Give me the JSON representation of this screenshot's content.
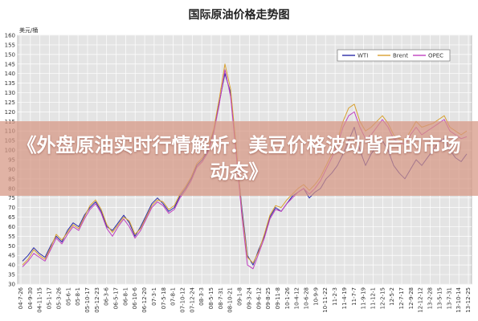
{
  "banner": {
    "title": "《外盘原油实时行情解析：美豆价格波动背后的市场动态》"
  },
  "colors": {
    "wti": "#2a2aa8",
    "brent": "#d8a030",
    "opec": "#c040c0",
    "plot_bg": "#e4e4e4",
    "grid": "#ffffff",
    "banner": "#d69682"
  },
  "chart_data": {
    "type": "line",
    "title": "国际原油价格走势图",
    "ylabel": "美元/桶",
    "ylim": [
      30,
      160
    ],
    "yticks": [
      30,
      35,
      40,
      45,
      50,
      55,
      60,
      65,
      70,
      75,
      80,
      85,
      90,
      95,
      100,
      105,
      110,
      115,
      120,
      125,
      130,
      135,
      140,
      145,
      150,
      155,
      160
    ],
    "grid": true,
    "legend_position": "top-right",
    "xticks": [
      "04-7-26",
      "04-9-30",
      "04-11-15",
      "05-1-17",
      "05-3-26",
      "05-6-1",
      "05-8-1",
      "05-10-17",
      "05-12-23",
      "06-3-6",
      "06-5-17",
      "06-8-1",
      "06-10-6",
      "06-12-20",
      "07-3-1",
      "07-5-18",
      "07-8-1",
      "07-10-12",
      "07-12-24",
      "08-3-3",
      "08-5-15",
      "08-7-31",
      "08-10-21",
      "09-1-8",
      "09-3-24",
      "09-6-12",
      "09-8-25",
      "09-11-8",
      "10-1-26",
      "10-4-12",
      "10-6-28",
      "10-9-9",
      "10-11-22",
      "11-2-3",
      "11-4-19",
      "11-7-7",
      "11-9-19",
      "11-12-1",
      "12-2-15",
      "12-5-2",
      "12-7-17",
      "12-9-28",
      "12-12-12",
      "13-2-28",
      "13-5-15",
      "13-7-31",
      "13-10-14",
      "13-12-25"
    ],
    "series": [
      {
        "name": "WTI",
        "values": [
          42,
          45,
          49,
          46,
          44,
          50,
          55,
          52,
          58,
          62,
          60,
          66,
          70,
          73,
          68,
          60,
          58,
          62,
          66,
          62,
          55,
          60,
          66,
          72,
          75,
          72,
          68,
          70,
          76,
          80,
          85,
          92,
          95,
          100,
          110,
          125,
          140,
          130,
          100,
          70,
          45,
          40,
          48,
          55,
          65,
          70,
          68,
          72,
          76,
          78,
          80,
          75,
          78,
          80,
          85,
          88,
          92,
          98,
          105,
          112,
          100,
          92,
          98,
          102,
          105,
          100,
          92,
          88,
          85,
          90,
          95,
          92,
          96,
          100,
          104,
          106,
          100,
          96,
          94,
          98
        ]
      },
      {
        "name": "Brent",
        "values": [
          40,
          43,
          48,
          45,
          43,
          49,
          56,
          53,
          57,
          61,
          59,
          65,
          71,
          74,
          69,
          61,
          57,
          61,
          65,
          63,
          56,
          59,
          65,
          71,
          74,
          73,
          69,
          71,
          77,
          81,
          86,
          93,
          96,
          101,
          111,
          127,
          145,
          132,
          102,
          68,
          44,
          41,
          47,
          56,
          66,
          71,
          70,
          74,
          77,
          80,
          82,
          79,
          82,
          86,
          92,
          98,
          105,
          115,
          122,
          124,
          115,
          110,
          112,
          115,
          118,
          114,
          108,
          106,
          105,
          110,
          115,
          112,
          113,
          114,
          116,
          118,
          112,
          110,
          108,
          110
        ]
      },
      {
        "name": "OPEC",
        "values": [
          39,
          42,
          46,
          44,
          42,
          48,
          54,
          51,
          56,
          60,
          58,
          64,
          69,
          72,
          67,
          59,
          55,
          60,
          64,
          60,
          54,
          58,
          64,
          70,
          73,
          71,
          67,
          69,
          75,
          79,
          84,
          91,
          94,
          99,
          109,
          124,
          142,
          128,
          98,
          66,
          40,
          38,
          46,
          54,
          64,
          69,
          68,
          72,
          75,
          78,
          80,
          77,
          80,
          84,
          90,
          96,
          103,
          112,
          118,
          120,
          112,
          106,
          108,
          112,
          116,
          112,
          106,
          104,
          103,
          108,
          112,
          108,
          110,
          112,
          114,
          116,
          110,
          108,
          106,
          107
        ]
      }
    ]
  }
}
